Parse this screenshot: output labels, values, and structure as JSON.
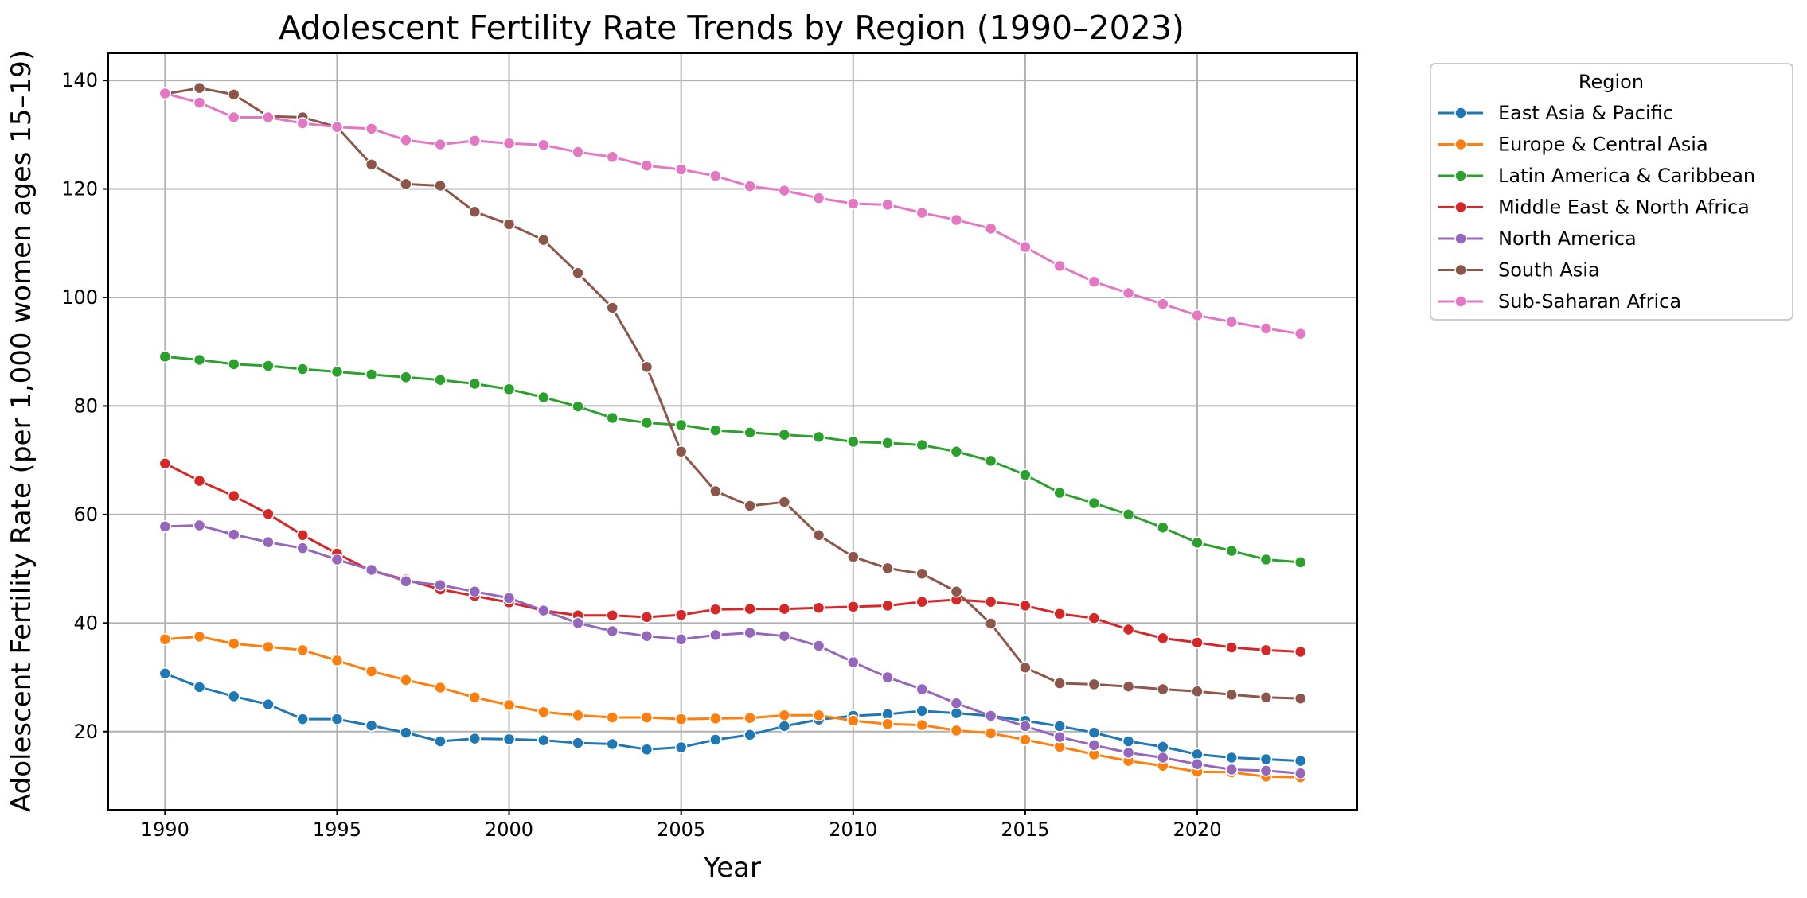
{
  "chart_data": {
    "type": "line",
    "title": "Adolescent Fertility Rate Trends by Region (1990–2023)",
    "xlabel": "Year",
    "ylabel": "Adolescent Fertility Rate (per 1,000 women ages 15–19)",
    "xlim": [
      1988.35,
      2024.65
    ],
    "ylim": [
      5.6,
      145.0
    ],
    "xticks": [
      1990,
      1995,
      2000,
      2005,
      2010,
      2015,
      2020
    ],
    "yticks": [
      20,
      40,
      60,
      80,
      100,
      120,
      140
    ],
    "grid": true,
    "legend_title": "Region",
    "legend_position": "outside-top-right",
    "x": [
      1990,
      1991,
      1992,
      1993,
      1994,
      1995,
      1996,
      1997,
      1998,
      1999,
      2000,
      2001,
      2002,
      2003,
      2004,
      2005,
      2006,
      2007,
      2008,
      2009,
      2010,
      2011,
      2012,
      2013,
      2014,
      2015,
      2016,
      2017,
      2018,
      2019,
      2020,
      2021,
      2022,
      2023
    ],
    "series": [
      {
        "name": "East Asia & Pacific",
        "color": "#1f77b4",
        "values": [
          30.7,
          28.2,
          26.5,
          25.0,
          22.3,
          22.3,
          21.1,
          19.8,
          18.2,
          18.7,
          18.6,
          18.4,
          17.9,
          17.7,
          16.7,
          17.1,
          18.5,
          19.4,
          21.0,
          22.2,
          22.9,
          23.2,
          23.8,
          23.4,
          22.9,
          22.0,
          21.0,
          19.8,
          18.2,
          17.2,
          15.8,
          15.2,
          14.9,
          14.6
        ]
      },
      {
        "name": "Europe & Central Asia",
        "color": "#ff7f0e",
        "values": [
          37.0,
          37.5,
          36.2,
          35.6,
          35.0,
          33.1,
          31.1,
          29.5,
          28.1,
          26.3,
          24.9,
          23.6,
          23.0,
          22.6,
          22.6,
          22.3,
          22.4,
          22.5,
          23.0,
          23.0,
          22.0,
          21.4,
          21.2,
          20.2,
          19.7,
          18.5,
          17.2,
          15.8,
          14.6,
          13.7,
          12.6,
          12.5,
          11.7,
          11.6
        ]
      },
      {
        "name": "Latin America & Caribbean",
        "color": "#2ca02c",
        "values": [
          89.1,
          88.5,
          87.7,
          87.4,
          86.8,
          86.3,
          85.8,
          85.3,
          84.8,
          84.1,
          83.1,
          81.6,
          79.9,
          77.8,
          76.9,
          76.5,
          75.5,
          75.1,
          74.7,
          74.3,
          73.4,
          73.2,
          72.8,
          71.6,
          69.9,
          67.3,
          64.0,
          62.1,
          60.0,
          57.6,
          54.8,
          53.3,
          51.7,
          51.2
        ]
      },
      {
        "name": "Middle East & North Africa",
        "color": "#d62728",
        "values": [
          69.4,
          66.2,
          63.4,
          60.1,
          56.2,
          52.8,
          49.6,
          48.0,
          46.2,
          45.0,
          43.8,
          42.3,
          41.4,
          41.4,
          41.1,
          41.5,
          42.5,
          42.6,
          42.6,
          42.8,
          43.0,
          43.2,
          43.9,
          44.3,
          43.9,
          43.2,
          41.7,
          40.9,
          38.8,
          37.2,
          36.4,
          35.5,
          35.0,
          34.7
        ]
      },
      {
        "name": "North America",
        "color": "#9467bd",
        "values": [
          57.8,
          58.0,
          56.3,
          54.9,
          53.8,
          51.7,
          49.8,
          47.7,
          47.0,
          45.8,
          44.6,
          42.3,
          40.0,
          38.5,
          37.6,
          37.0,
          37.8,
          38.2,
          37.6,
          35.8,
          32.8,
          30.0,
          27.8,
          25.2,
          22.9,
          21.0,
          19.0,
          17.5,
          16.1,
          15.2,
          14.0,
          13.0,
          12.8,
          12.3
        ]
      },
      {
        "name": "South Asia",
        "color": "#8c564b",
        "values": [
          137.5,
          138.6,
          137.4,
          133.4,
          133.2,
          131.4,
          124.5,
          120.9,
          120.6,
          115.8,
          113.5,
          110.6,
          104.5,
          98.1,
          87.2,
          71.6,
          64.3,
          61.6,
          62.3,
          56.2,
          52.2,
          50.1,
          49.1,
          45.8,
          39.9,
          31.8,
          28.9,
          28.7,
          28.3,
          27.8,
          27.4,
          26.8,
          26.3,
          26.1
        ]
      },
      {
        "name": "Sub-Saharan Africa",
        "color": "#e377c2",
        "values": [
          137.6,
          135.9,
          133.2,
          133.2,
          132.1,
          131.4,
          131.1,
          129.0,
          128.2,
          128.9,
          128.4,
          128.1,
          126.8,
          125.9,
          124.3,
          123.6,
          122.4,
          120.5,
          119.7,
          118.3,
          117.3,
          117.1,
          115.6,
          114.3,
          112.7,
          109.3,
          105.8,
          102.9,
          100.8,
          98.8,
          96.7,
          95.5,
          94.3,
          93.3
        ]
      }
    ]
  }
}
